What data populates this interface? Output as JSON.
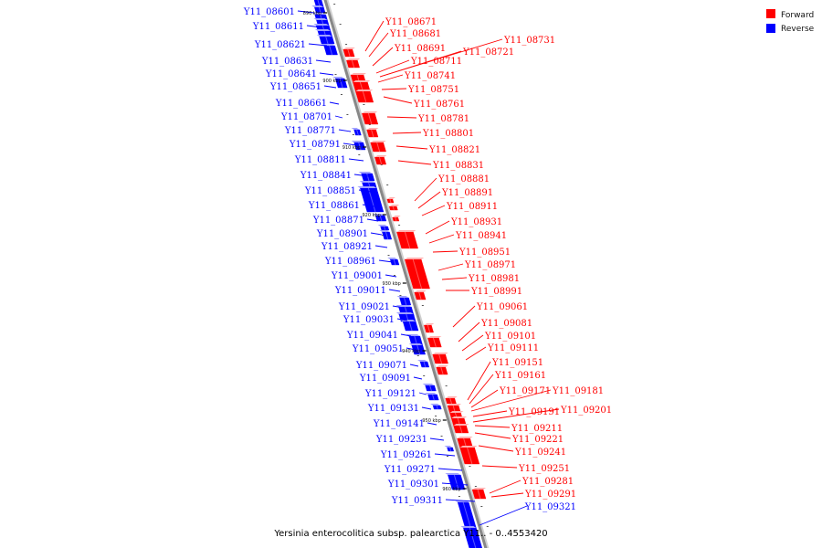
{
  "caption": "Yersinia enterocolitica subsp. palearctica Y11.. - 0..4553420",
  "legend": [
    {
      "label": "Forward",
      "color": "#ff0000"
    },
    {
      "label": "Reverse",
      "color": "#0000ff"
    }
  ],
  "colors": {
    "forward": "#ff0000",
    "reverse": "#0000ff",
    "axis": "#888888"
  },
  "ticks": [
    "890 kbp",
    "900 kbp",
    "910 kbp",
    "920 kbp",
    "930 kbp",
    "940 kbp",
    "950 kbp",
    "960 kbp"
  ],
  "reverse_genes": [
    "Y11_08601",
    "Y11_08611",
    "Y11_08621",
    "Y11_08631",
    "Y11_08641",
    "Y11_08651",
    "Y11_08661",
    "Y11_08701",
    "Y11_08771",
    "Y11_08791",
    "Y11_08811",
    "Y11_08841",
    "Y11_08851",
    "Y11_08861",
    "Y11_08871",
    "Y11_08901",
    "Y11_08921",
    "Y11_08961",
    "Y11_09001",
    "Y11_09011",
    "Y11_09021",
    "Y11_09031",
    "Y11_09041",
    "Y11_09051",
    "Y11_09071",
    "Y11_09091",
    "Y11_09121",
    "Y11_09131",
    "Y11_09141",
    "Y11_09231",
    "Y11_09261",
    "Y11_09271",
    "Y11_09301",
    "Y11_09311",
    "Y11_09321"
  ],
  "forward_genes": [
    "Y11_08671",
    "Y11_08681",
    "Y11_08691",
    "Y11_08711",
    "Y11_08721",
    "Y11_08731",
    "Y11_08741",
    "Y11_08751",
    "Y11_08761",
    "Y11_08781",
    "Y11_08801",
    "Y11_08821",
    "Y11_08831",
    "Y11_08881",
    "Y11_08891",
    "Y11_08911",
    "Y11_08931",
    "Y11_08941",
    "Y11_08951",
    "Y11_08971",
    "Y11_08981",
    "Y11_08991",
    "Y11_09061",
    "Y11_09081",
    "Y11_09101",
    "Y11_09111",
    "Y11_09151",
    "Y11_09161",
    "Y11_09171",
    "Y11_09181",
    "Y11_09191",
    "Y11_09201",
    "Y11_09211",
    "Y11_09221",
    "Y11_09241",
    "Y11_09251",
    "Y11_09281",
    "Y11_09291"
  ]
}
